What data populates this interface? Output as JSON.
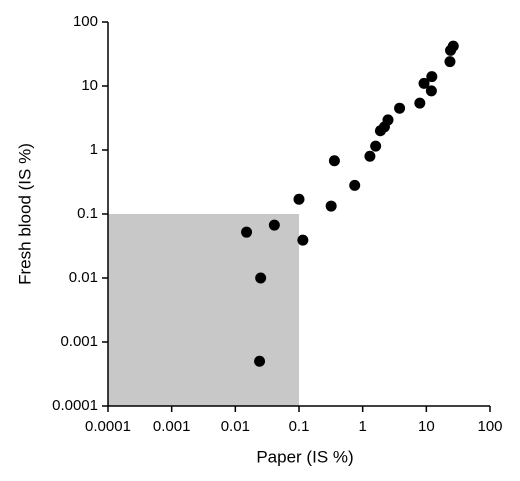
{
  "chart_data": {
    "type": "scatter",
    "x_label": "Paper (IS %)",
    "y_label": "Fresh blood (IS %)",
    "log_x": true,
    "log_y": true,
    "xlim": [
      0.0001,
      100
    ],
    "ylim": [
      0.0001,
      100
    ],
    "xticks": [
      0.0001,
      0.001,
      0.01,
      0.1,
      1,
      10,
      100
    ],
    "yticks": [
      0.0001,
      0.001,
      0.01,
      0.1,
      1,
      10,
      100
    ],
    "color": "#000000",
    "shaded_region": {
      "xlim": [
        0.0001,
        0.1
      ],
      "ylim": [
        0.0001,
        0.1
      ],
      "color": "#c8c8c8"
    },
    "x": [
      0.015,
      0.041,
      0.025,
      0.024,
      0.1,
      0.115,
      0.32,
      0.36,
      0.75,
      1.3,
      1.6,
      1.9,
      2.2,
      2.5,
      3.8,
      7.9,
      9.2,
      12.2,
      12,
      23.5,
      24,
      26.5
    ],
    "values": [
      0.052,
      0.067,
      0.01,
      0.0005,
      0.17,
      0.039,
      0.133,
      0.68,
      0.28,
      0.8,
      1.15,
      2.0,
      2.3,
      2.95,
      4.5,
      5.4,
      11,
      14,
      8.4,
      24,
      36,
      42
    ]
  }
}
